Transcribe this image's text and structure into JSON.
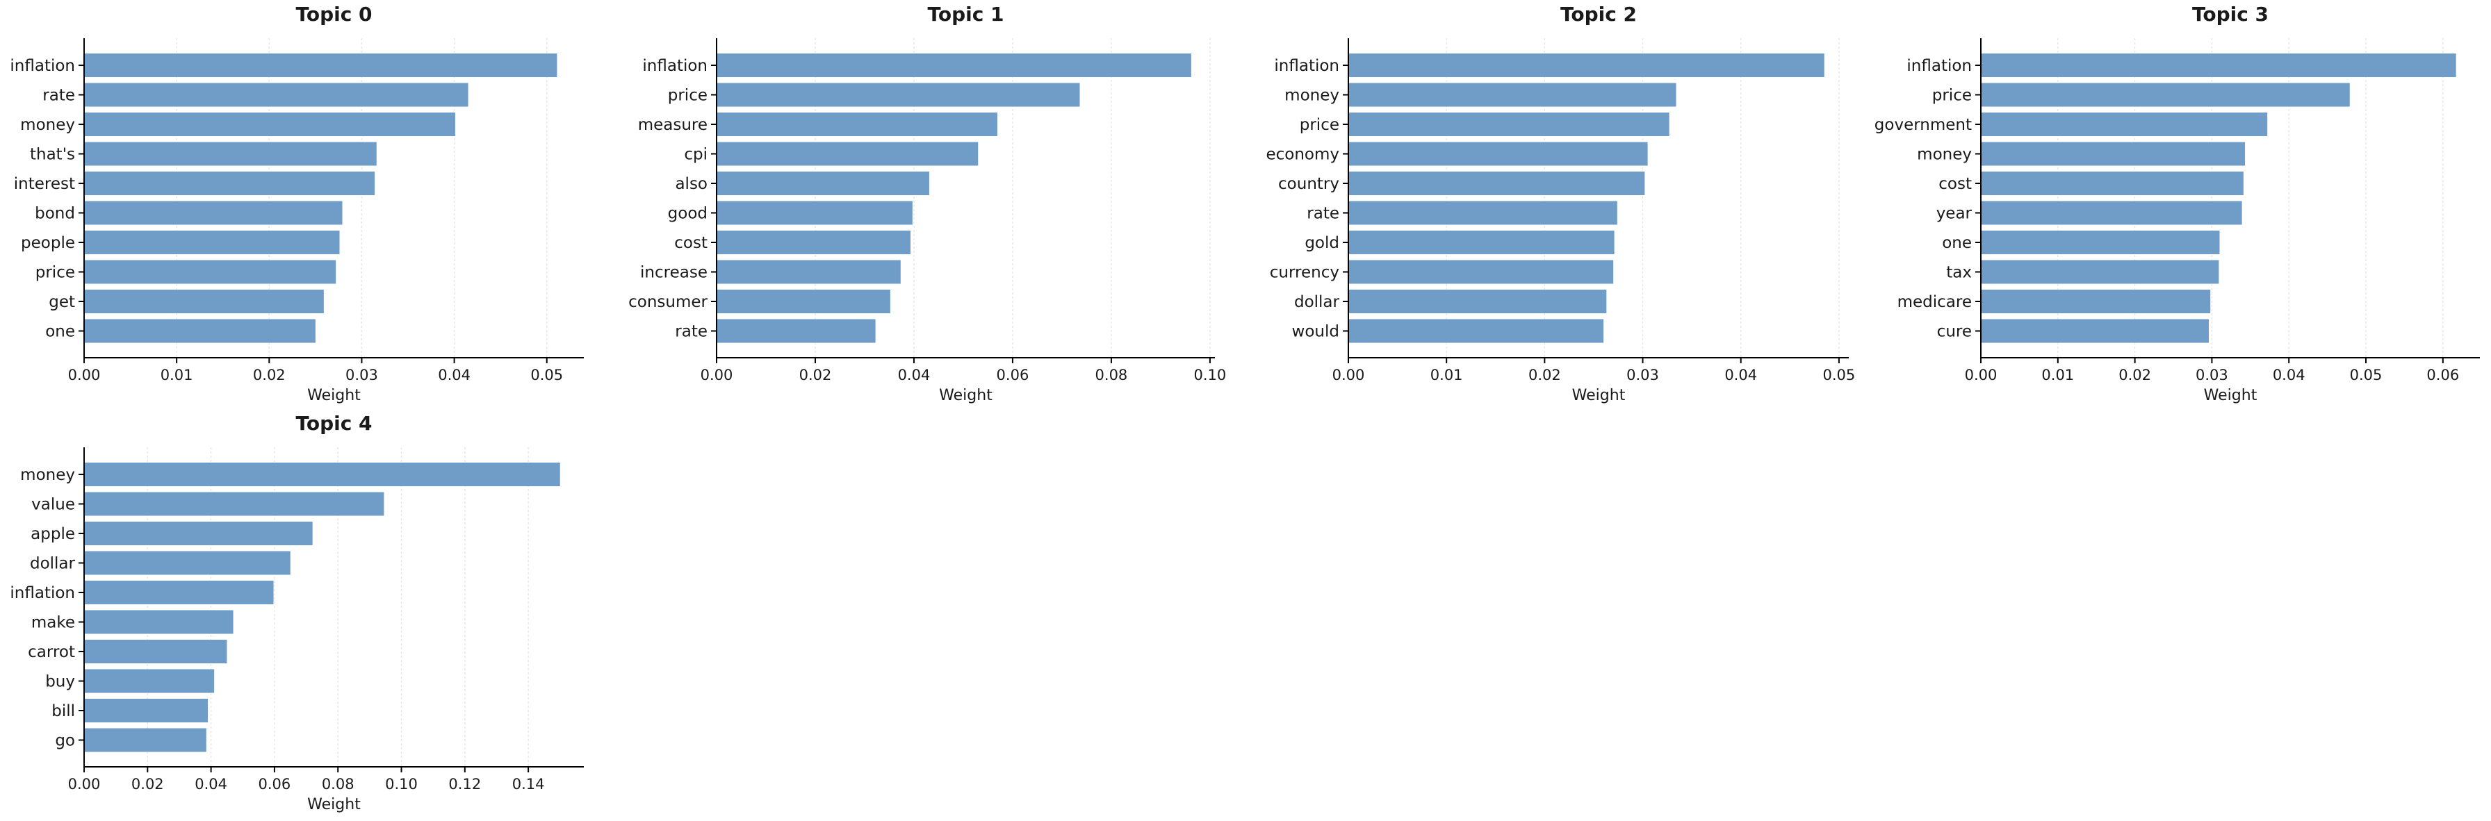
{
  "chart_data": [
    {
      "type": "bar",
      "orientation": "horizontal",
      "title": "Topic 0",
      "xlabel": "Weight",
      "categories": [
        "inflation",
        "rate",
        "money",
        "that's",
        "interest",
        "bond",
        "people",
        "price",
        "get",
        "one"
      ],
      "values": [
        0.0511,
        0.0415,
        0.0401,
        0.0316,
        0.0314,
        0.0279,
        0.0276,
        0.0272,
        0.0259,
        0.025
      ],
      "xlim": [
        0,
        0.054
      ],
      "xticks": [
        "0.00",
        "0.01",
        "0.02",
        "0.03",
        "0.04",
        "0.05"
      ],
      "grid": "x",
      "color": "#6f9dc7"
    },
    {
      "type": "bar",
      "orientation": "horizontal",
      "title": "Topic 1",
      "xlabel": "Weight",
      "categories": [
        "inflation",
        "price",
        "measure",
        "cpi",
        "also",
        "good",
        "cost",
        "increase",
        "consumer",
        "rate"
      ],
      "values": [
        0.0962,
        0.0736,
        0.0569,
        0.053,
        0.0431,
        0.0397,
        0.0393,
        0.0373,
        0.0352,
        0.0322
      ],
      "xlim": [
        0,
        0.101
      ],
      "xticks": [
        "0.00",
        "0.02",
        "0.04",
        "0.06",
        "0.08",
        "0.10"
      ],
      "grid": "x",
      "color": "#6f9dc7"
    },
    {
      "type": "bar",
      "orientation": "horizontal",
      "title": "Topic 2",
      "xlabel": "Weight",
      "categories": [
        "inflation",
        "money",
        "price",
        "economy",
        "country",
        "rate",
        "gold",
        "currency",
        "dollar",
        "would"
      ],
      "values": [
        0.0485,
        0.0334,
        0.0327,
        0.0305,
        0.0302,
        0.0274,
        0.0271,
        0.027,
        0.0263,
        0.026
      ],
      "xlim": [
        0,
        0.051
      ],
      "xticks": [
        "0.00",
        "0.01",
        "0.02",
        "0.03",
        "0.04",
        "0.05"
      ],
      "grid": "x",
      "color": "#6f9dc7"
    },
    {
      "type": "bar",
      "orientation": "horizontal",
      "title": "Topic 3",
      "xlabel": "Weight",
      "categories": [
        "inflation",
        "price",
        "government",
        "money",
        "cost",
        "year",
        "one",
        "tax",
        "medicare",
        "cure"
      ],
      "values": [
        0.0617,
        0.0479,
        0.0372,
        0.0343,
        0.0341,
        0.0339,
        0.031,
        0.0309,
        0.0298,
        0.0296
      ],
      "xlim": [
        0,
        0.0648
      ],
      "xticks": [
        "0.00",
        "0.01",
        "0.02",
        "0.03",
        "0.04",
        "0.05",
        "0.06"
      ],
      "grid": "x",
      "color": "#6f9dc7"
    },
    {
      "type": "bar",
      "orientation": "horizontal",
      "title": "Topic 4",
      "xlabel": "Weight",
      "categories": [
        "money",
        "value",
        "apple",
        "dollar",
        "inflation",
        "make",
        "carrot",
        "buy",
        "bill",
        "go"
      ],
      "values": [
        0.15,
        0.0945,
        0.072,
        0.065,
        0.0597,
        0.047,
        0.045,
        0.041,
        0.039,
        0.0385
      ],
      "xlim": [
        0,
        0.1575
      ],
      "xticks": [
        "0.00",
        "0.02",
        "0.04",
        "0.06",
        "0.08",
        "0.10",
        "0.12",
        "0.14"
      ],
      "grid": "x",
      "color": "#6f9dc7"
    }
  ]
}
